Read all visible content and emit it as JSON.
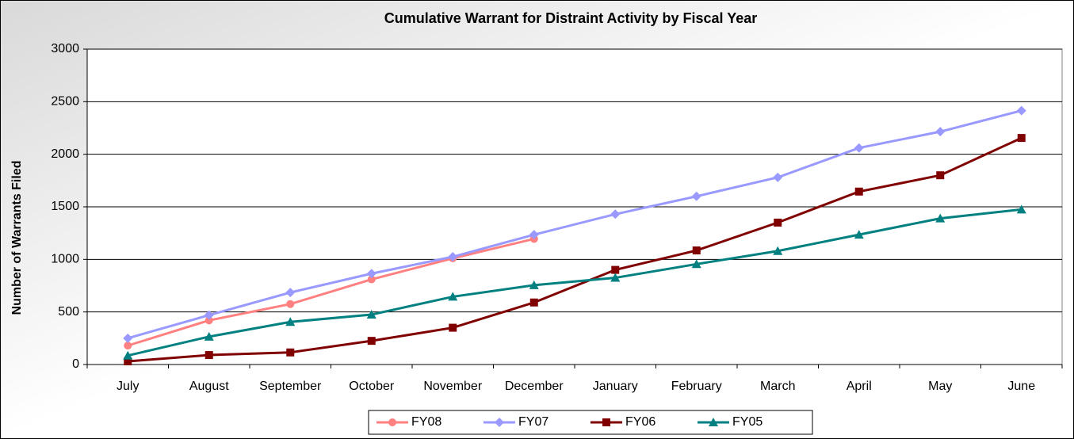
{
  "chart_data": {
    "type": "line",
    "title": "Cumulative Warrant for Distraint Activity by Fiscal Year",
    "ylabel": "Number of Warrants Filed",
    "categories": [
      "July",
      "August",
      "September",
      "October",
      "November",
      "December",
      "January",
      "February",
      "March",
      "April",
      "May",
      "June"
    ],
    "series": [
      {
        "name": "FY08",
        "color": "#ff8080",
        "marker": "circle",
        "values": [
          180,
          420,
          575,
          810,
          1010,
          1195,
          null,
          null,
          null,
          null,
          null,
          null
        ]
      },
      {
        "name": "FY07",
        "color": "#9999ff",
        "marker": "diamond",
        "values": [
          250,
          470,
          685,
          865,
          1025,
          1235,
          1430,
          1600,
          1780,
          2060,
          2215,
          2415
        ]
      },
      {
        "name": "FY06",
        "color": "#800000",
        "marker": "square",
        "values": [
          30,
          90,
          115,
          225,
          350,
          590,
          900,
          1085,
          1350,
          1645,
          1800,
          2155
        ]
      },
      {
        "name": "FY05",
        "color": "#008080",
        "marker": "triangle",
        "values": [
          85,
          265,
          405,
          475,
          645,
          755,
          825,
          955,
          1080,
          1235,
          1390,
          1475
        ]
      }
    ],
    "ylim": [
      0,
      3000
    ],
    "yticks": [
      0,
      500,
      1000,
      1500,
      2000,
      2500,
      3000
    ],
    "grid": true,
    "legend": "bottom"
  }
}
